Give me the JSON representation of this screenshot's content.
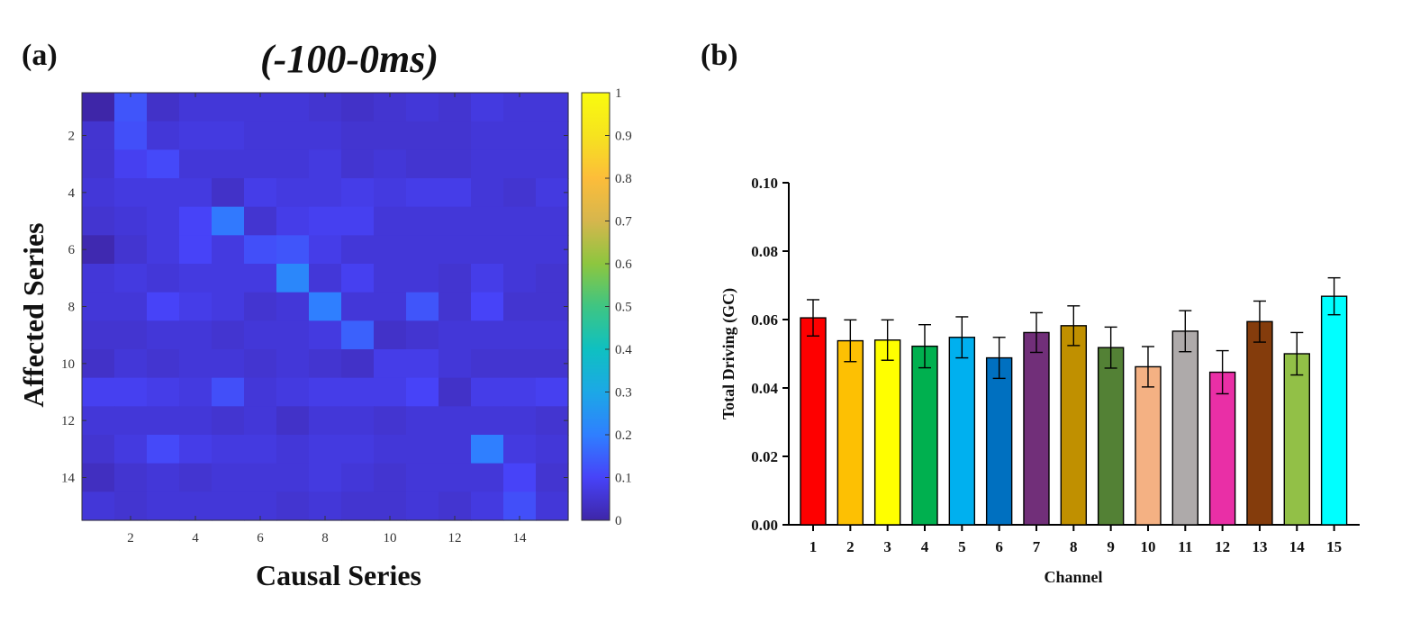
{
  "panels": {
    "a": {
      "label": "(a)",
      "title": "(-100-0ms)",
      "xlabel": "Causal Series",
      "ylabel": "Affected Series"
    },
    "b": {
      "label": "(b)",
      "xlabel": "Channel",
      "ylabel": "Total Driving (GC)"
    }
  },
  "chart_data": [
    {
      "type": "heatmap",
      "title": "(-100-0ms)",
      "xlabel": "Causal Series",
      "ylabel": "Affected Series",
      "rows": 15,
      "cols": 15,
      "x_ticks": [
        "2",
        "4",
        "6",
        "8",
        "10",
        "12",
        "14"
      ],
      "y_ticks": [
        "2",
        "4",
        "6",
        "8",
        "10",
        "12",
        "14"
      ],
      "colorbar": {
        "range": [
          0,
          1
        ],
        "ticks": [
          "0",
          "0.1",
          "0.2",
          "0.3",
          "0.4",
          "0.5",
          "0.6",
          "0.7",
          "0.8",
          "0.9",
          "1"
        ],
        "colormap": [
          "#3e26a8",
          "#4743f8",
          "#2f7fff",
          "#1ca8e6",
          "#0fc0c1",
          "#3ec583",
          "#8dc63f",
          "#d6b64d",
          "#fcbd3a",
          "#f6e31f",
          "#f9fb0e"
        ]
      },
      "matrix": [
        [
          0.0,
          0.13,
          0.04,
          0.06,
          0.06,
          0.06,
          0.06,
          0.05,
          0.04,
          0.05,
          0.06,
          0.05,
          0.07,
          0.06,
          0.06
        ],
        [
          0.05,
          0.12,
          0.06,
          0.07,
          0.07,
          0.06,
          0.06,
          0.06,
          0.05,
          0.05,
          0.05,
          0.05,
          0.06,
          0.06,
          0.06
        ],
        [
          0.05,
          0.09,
          0.11,
          0.06,
          0.06,
          0.06,
          0.06,
          0.07,
          0.05,
          0.06,
          0.05,
          0.05,
          0.06,
          0.06,
          0.06
        ],
        [
          0.06,
          0.07,
          0.07,
          0.07,
          0.04,
          0.08,
          0.07,
          0.07,
          0.08,
          0.07,
          0.08,
          0.08,
          0.06,
          0.05,
          0.07
        ],
        [
          0.05,
          0.06,
          0.07,
          0.1,
          0.19,
          0.05,
          0.08,
          0.09,
          0.09,
          0.06,
          0.06,
          0.06,
          0.06,
          0.06,
          0.06
        ],
        [
          0.01,
          0.05,
          0.07,
          0.1,
          0.07,
          0.12,
          0.13,
          0.08,
          0.06,
          0.06,
          0.06,
          0.06,
          0.06,
          0.06,
          0.06
        ],
        [
          0.06,
          0.07,
          0.06,
          0.07,
          0.07,
          0.07,
          0.22,
          0.06,
          0.09,
          0.06,
          0.06,
          0.05,
          0.08,
          0.06,
          0.05
        ],
        [
          0.06,
          0.06,
          0.1,
          0.08,
          0.07,
          0.05,
          0.06,
          0.2,
          0.06,
          0.06,
          0.13,
          0.05,
          0.1,
          0.05,
          0.05
        ],
        [
          0.05,
          0.05,
          0.06,
          0.06,
          0.05,
          0.06,
          0.06,
          0.07,
          0.15,
          0.04,
          0.05,
          0.06,
          0.06,
          0.06,
          0.06
        ],
        [
          0.04,
          0.06,
          0.05,
          0.06,
          0.06,
          0.05,
          0.06,
          0.05,
          0.04,
          0.08,
          0.08,
          0.06,
          0.05,
          0.05,
          0.05
        ],
        [
          0.09,
          0.09,
          0.08,
          0.07,
          0.12,
          0.06,
          0.07,
          0.08,
          0.08,
          0.08,
          0.1,
          0.04,
          0.08,
          0.08,
          0.09
        ],
        [
          0.06,
          0.06,
          0.06,
          0.06,
          0.05,
          0.06,
          0.04,
          0.06,
          0.06,
          0.05,
          0.06,
          0.06,
          0.06,
          0.06,
          0.05
        ],
        [
          0.05,
          0.07,
          0.11,
          0.08,
          0.07,
          0.07,
          0.06,
          0.07,
          0.07,
          0.06,
          0.06,
          0.06,
          0.2,
          0.07,
          0.06
        ],
        [
          0.03,
          0.05,
          0.06,
          0.05,
          0.06,
          0.06,
          0.06,
          0.07,
          0.06,
          0.05,
          0.06,
          0.06,
          0.06,
          0.1,
          0.05
        ],
        [
          0.06,
          0.05,
          0.06,
          0.06,
          0.06,
          0.06,
          0.05,
          0.06,
          0.05,
          0.05,
          0.06,
          0.05,
          0.07,
          0.12,
          0.06
        ]
      ]
    },
    {
      "type": "bar",
      "xlabel": "Channel",
      "ylabel": "Total Driving (GC)",
      "ylim": [
        0,
        0.1
      ],
      "y_ticks": [
        "0.00",
        "0.02",
        "0.04",
        "0.06",
        "0.08",
        "0.10"
      ],
      "categories": [
        "1",
        "2",
        "3",
        "4",
        "5",
        "6",
        "7",
        "8",
        "9",
        "10",
        "11",
        "12",
        "13",
        "14",
        "15"
      ],
      "values": [
        0.0605,
        0.0538,
        0.054,
        0.0522,
        0.0548,
        0.0488,
        0.0562,
        0.0582,
        0.0518,
        0.0462,
        0.0566,
        0.0446,
        0.0594,
        0.05,
        0.0668
      ],
      "errors": [
        0.0053,
        0.0061,
        0.0059,
        0.0063,
        0.006,
        0.006,
        0.0058,
        0.0058,
        0.006,
        0.0059,
        0.006,
        0.0063,
        0.006,
        0.0062,
        0.0054
      ],
      "colors": [
        "#fe0000",
        "#fdc003",
        "#ffff00",
        "#00b04f",
        "#00b0ef",
        "#0070c0",
        "#712f79",
        "#c09000",
        "#538135",
        "#f4b183",
        "#aeaaaa",
        "#e92fa6",
        "#843c0c",
        "#92c047",
        "#00ffff"
      ]
    }
  ]
}
